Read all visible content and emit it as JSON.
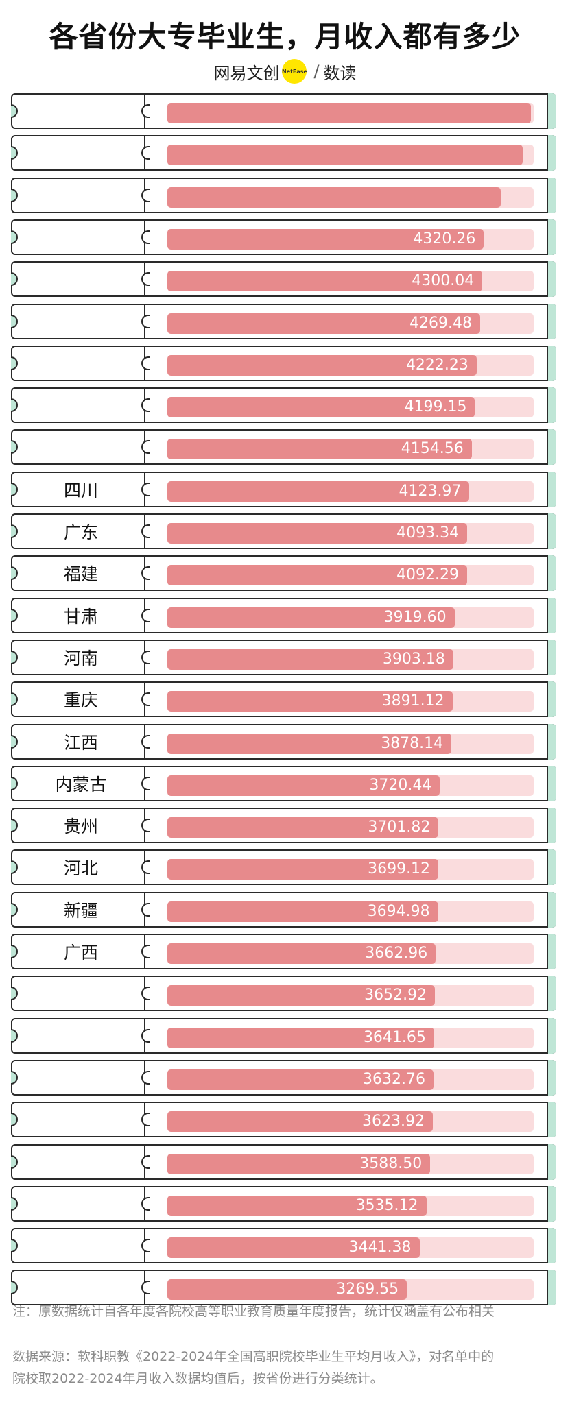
{
  "header": {
    "title": "各省份大专毕业生，月收入都有多少",
    "brand_left": "网易文创",
    "brand_dot": "NetEase",
    "brand_sep": "/",
    "brand_right": "数读"
  },
  "chart_data": {
    "type": "bar",
    "orientation": "horizontal",
    "title": "各省份大专毕业生，月收入都有多少",
    "xlim": [
      0,
      5000
    ],
    "categories": [
      "",
      "",
      "",
      "",
      "",
      "",
      "",
      "",
      "",
      "四川",
      "广东",
      "福建",
      "甘肃",
      "河南",
      "重庆",
      "江西",
      "内蒙古",
      "贵州",
      "河北",
      "新疆",
      "广西",
      "",
      "",
      "",
      "",
      "",
      "",
      "",
      ""
    ],
    "values": [
      4960,
      4850,
      4550,
      4320.26,
      4300.04,
      4269.48,
      4222.23,
      4199.15,
      4154.56,
      4123.97,
      4093.34,
      4092.29,
      3919.6,
      3903.18,
      3891.12,
      3878.14,
      3720.44,
      3701.82,
      3699.12,
      3694.98,
      3662.96,
      3652.92,
      3641.65,
      3632.76,
      3623.92,
      3588.5,
      3535.12,
      3441.38,
      3269.55
    ],
    "value_labels": [
      "",
      "",
      "",
      "4320.26",
      "4300.04",
      "4269.48",
      "4222.23",
      "4199.15",
      "4154.56",
      "4123.97",
      "4093.34",
      "4092.29",
      "3919.60",
      "3903.18",
      "3891.12",
      "3878.14",
      "3720.44",
      "3701.82",
      "3699.12",
      "3694.98",
      "3662.96",
      "3652.92",
      "3641.65",
      "3632.76",
      "3623.92",
      "3588.50",
      "3535.12",
      "3441.38",
      "3269.55"
    ],
    "bar_color": "#e78a8c",
    "track_color": "#fadcdd",
    "accent_color": "#bfe6d6"
  },
  "footer": {
    "note": "注：原数据统计自各年度各院校高等职业教育质量年度报告，统计仅涵盖有公布相关",
    "source_line1": "数据来源：软科职教《2022-2024年全国高职院校毕业生平均月收入》，对名单中的",
    "source_line2": "院校取2022-2024年月收入数据均值后，按省份进行分类统计。"
  }
}
